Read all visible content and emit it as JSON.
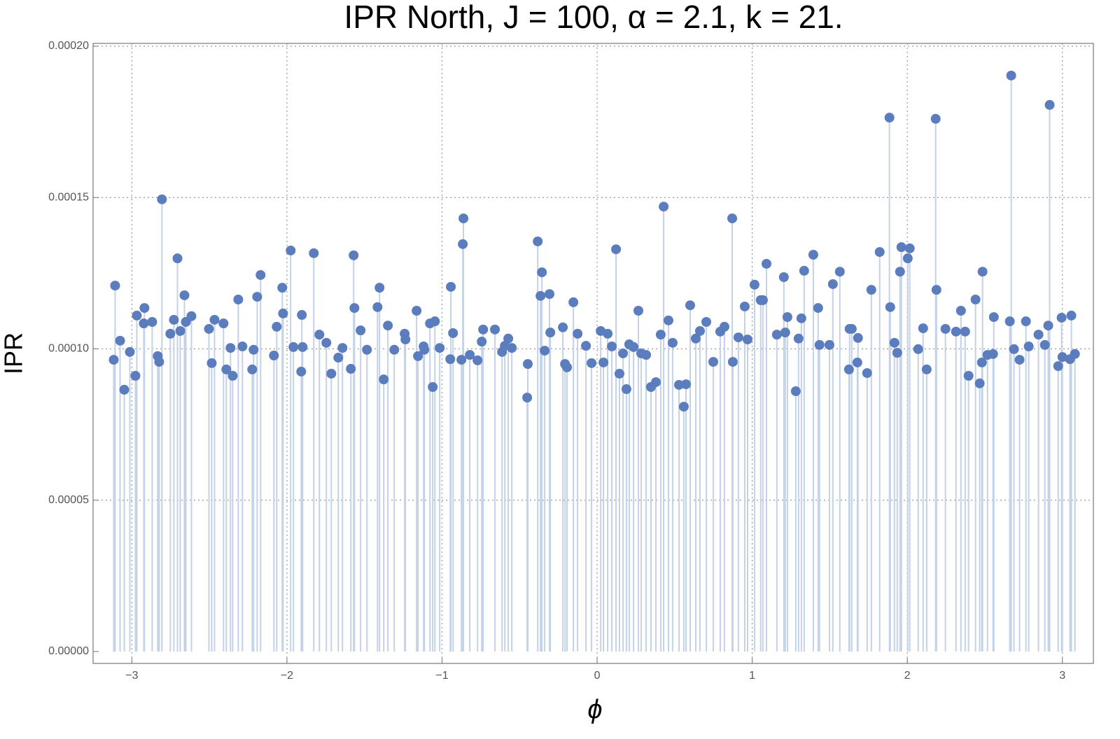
{
  "chart_data": {
    "type": "stem",
    "title": "IPR North, J = 100, α = 2.1, k = 21.",
    "x_label": "ϕ",
    "y_label": "IPR",
    "x": [
      -3.117,
      -3.108,
      -3.076,
      -3.049,
      -3.013,
      -2.977,
      -2.968,
      -2.923,
      -2.919,
      -2.869,
      -2.833,
      -2.824,
      -2.806,
      -2.752,
      -2.729,
      -2.706,
      -2.688,
      -2.661,
      -2.652,
      -2.616,
      -2.503,
      -2.485,
      -2.467,
      -2.409,
      -2.391,
      -2.364,
      -2.35,
      -2.314,
      -2.287,
      -2.224,
      -2.215,
      -2.192,
      -2.17,
      -2.084,
      -2.066,
      -2.03,
      -2.025,
      -1.976,
      -1.958,
      -1.899,
      -1.904,
      -1.908,
      -1.827,
      -1.791,
      -1.746,
      -1.714,
      -1.669,
      -1.642,
      -1.588,
      -1.57,
      -1.565,
      -1.525,
      -1.484,
      -1.416,
      -1.403,
      -1.376,
      -1.349,
      -1.308,
      -1.241,
      -1.236,
      -1.164,
      -1.155,
      -1.119,
      -1.114,
      -1.078,
      -1.06,
      -1.046,
      -1.015,
      -0.947,
      -0.943,
      -0.929,
      -0.875,
      -0.866,
      -0.862,
      -0.821,
      -0.771,
      -0.744,
      -0.735,
      -0.659,
      -0.613,
      -0.595,
      -0.573,
      -0.55,
      -0.451,
      -0.447,
      -0.383,
      -0.365,
      -0.356,
      -0.338,
      -0.307,
      -0.302,
      -0.221,
      -0.207,
      -0.194,
      -0.153,
      -0.126,
      -0.072,
      -0.036,
      0.023,
      0.041,
      0.068,
      0.095,
      0.122,
      0.144,
      0.167,
      0.189,
      0.207,
      0.235,
      0.266,
      0.284,
      0.316,
      0.347,
      0.379,
      0.41,
      0.429,
      0.46,
      0.487,
      0.528,
      0.559,
      0.573,
      0.6,
      0.636,
      0.663,
      0.704,
      0.749,
      0.794,
      0.821,
      0.871,
      0.875,
      0.911,
      0.952,
      0.97,
      1.015,
      1.055,
      1.069,
      1.092,
      1.159,
      1.204,
      1.213,
      1.227,
      1.281,
      1.299,
      1.317,
      1.335,
      1.394,
      1.425,
      1.434,
      1.498,
      1.52,
      1.565,
      1.624,
      1.628,
      1.642,
      1.678,
      1.682,
      1.741,
      1.768,
      1.822,
      1.885,
      1.89,
      1.917,
      1.935,
      1.953,
      1.962,
      2.003,
      2.016,
      2.07,
      2.102,
      2.125,
      2.183,
      2.188,
      2.246,
      2.314,
      2.346,
      2.373,
      2.395,
      2.44,
      2.467,
      2.481,
      2.485,
      2.517,
      2.558,
      2.553,
      2.661,
      2.67,
      2.688,
      2.724,
      2.765,
      2.783,
      2.846,
      2.887,
      2.909,
      2.918,
      2.973,
      2.995,
      3.0,
      3.049,
      3.058,
      3.081
    ],
    "values": [
      9.64e-05,
      0.0001209,
      0.0001027,
      8.65e-05,
      9.9e-05,
      9.11e-05,
      0.000111,
      0.0001084,
      0.0001135,
      0.0001089,
      9.76e-05,
      9.57e-05,
      0.0001494,
      0.000105,
      0.0001096,
      0.0001299,
      0.0001059,
      0.0001177,
      0.0001089,
      0.0001108,
      0.0001066,
      9.53e-05,
      0.0001096,
      0.0001084,
      9.32e-05,
      0.0001003,
      9.11e-05,
      0.0001163,
      0.0001008,
      9.32e-05,
      9.97e-05,
      0.0001172,
      0.0001244,
      9.78e-05,
      0.0001073,
      0.0001202,
      0.0001117,
      0.0001325,
      0.0001006,
      0.0001006,
      0.0001112,
      9.25e-05,
      0.0001316,
      0.0001047,
      0.000102,
      9.18e-05,
      9.71e-05,
      0.0001003,
      9.34e-05,
      0.0001309,
      0.0001135,
      0.0001061,
      9.97e-05,
      0.0001138,
      0.0001202,
      8.99e-05,
      0.0001077,
      9.97e-05,
      0.000105,
      0.0001031,
      0.0001126,
      9.76e-05,
      0.0001008,
      9.97e-05,
      0.0001084,
      8.74e-05,
      0.0001091,
      0.0001003,
      9.66e-05,
      0.0001205,
      0.0001052,
      9.64e-05,
      0.0001346,
      0.0001431,
      9.8e-05,
      9.62e-05,
      0.0001024,
      0.0001064,
      0.0001064,
      9.9e-05,
      0.000101,
      0.0001034,
      0.0001003,
      8.39e-05,
      9.5e-05,
      0.0001355,
      0.0001175,
      0.0001253,
      9.94e-05,
      0.0001181,
      0.0001054,
      0.0001071,
      9.5e-05,
      9.39e-05,
      0.0001154,
      0.000105,
      0.000101,
      9.53e-05,
      0.0001059,
      9.55e-05,
      0.000105,
      0.0001008,
      0.0001329,
      9.18e-05,
      9.85e-05,
      8.67e-05,
      0.0001015,
      0.0001006,
      0.0001126,
      9.85e-05,
      9.8e-05,
      8.74e-05,
      8.9e-05,
      0.0001047,
      0.000147,
      0.0001094,
      0.000102,
      8.81e-05,
      8.09e-05,
      8.83e-05,
      0.0001144,
      0.0001034,
      0.0001059,
      0.0001089,
      9.57e-05,
      0.0001057,
      0.0001073,
      0.0001431,
      9.57e-05,
      0.0001038,
      0.000114,
      0.0001031,
      0.0001212,
      0.0001161,
      0.0001161,
      0.0001281,
      0.0001047,
      0.0001237,
      0.0001054,
      0.0001105,
      8.6e-05,
      0.0001034,
      0.0001101,
      0.0001258,
      0.0001311,
      0.0001135,
      0.0001013,
      0.0001013,
      0.0001214,
      0.0001255,
      9.32e-05,
      0.0001066,
      0.0001066,
      9.55e-05,
      0.0001036,
      9.2e-05,
      0.0001195,
      0.000132,
      0.0001764,
      0.0001138,
      0.000102,
      9.87e-05,
      0.0001255,
      0.0001336,
      0.0001299,
      0.0001332,
      9.99e-05,
      0.0001068,
      9.32e-05,
      0.000176,
      0.0001195,
      0.0001066,
      0.0001057,
      0.0001126,
      0.0001057,
      9.11e-05,
      0.0001163,
      8.86e-05,
      9.55e-05,
      0.0001255,
      9.8e-05,
      0.0001105,
      9.83e-05,
      0.0001091,
      0.0001903,
      9.99e-05,
      9.64e-05,
      0.0001091,
      0.0001008,
      0.0001047,
      0.0001013,
      0.0001077,
      0.0001806,
      9.43e-05,
      0.0001103,
      9.73e-05,
      9.66e-05,
      0.000111,
      9.83e-05
    ],
    "color": "#5b7dbd",
    "stem_color": "#c3d2e6",
    "xlim": [
      -3.25,
      3.2
    ],
    "xticks": [
      {
        "value": -3,
        "label": "−3"
      },
      {
        "value": -2,
        "label": "−2"
      },
      {
        "value": -1,
        "label": "−1"
      },
      0,
      1,
      2,
      3
    ],
    "ylim": [
      0,
      0.0002
    ],
    "yticks": [
      {
        "value": 0,
        "label": "0.00000"
      },
      {
        "value": 5e-05,
        "label": "0.00005"
      },
      {
        "value": 0.0001,
        "label": "0.00010"
      },
      {
        "value": 0.00015,
        "label": "0.00015"
      },
      {
        "value": 0.0002,
        "label": "0.00020"
      }
    ],
    "grid": true
  }
}
